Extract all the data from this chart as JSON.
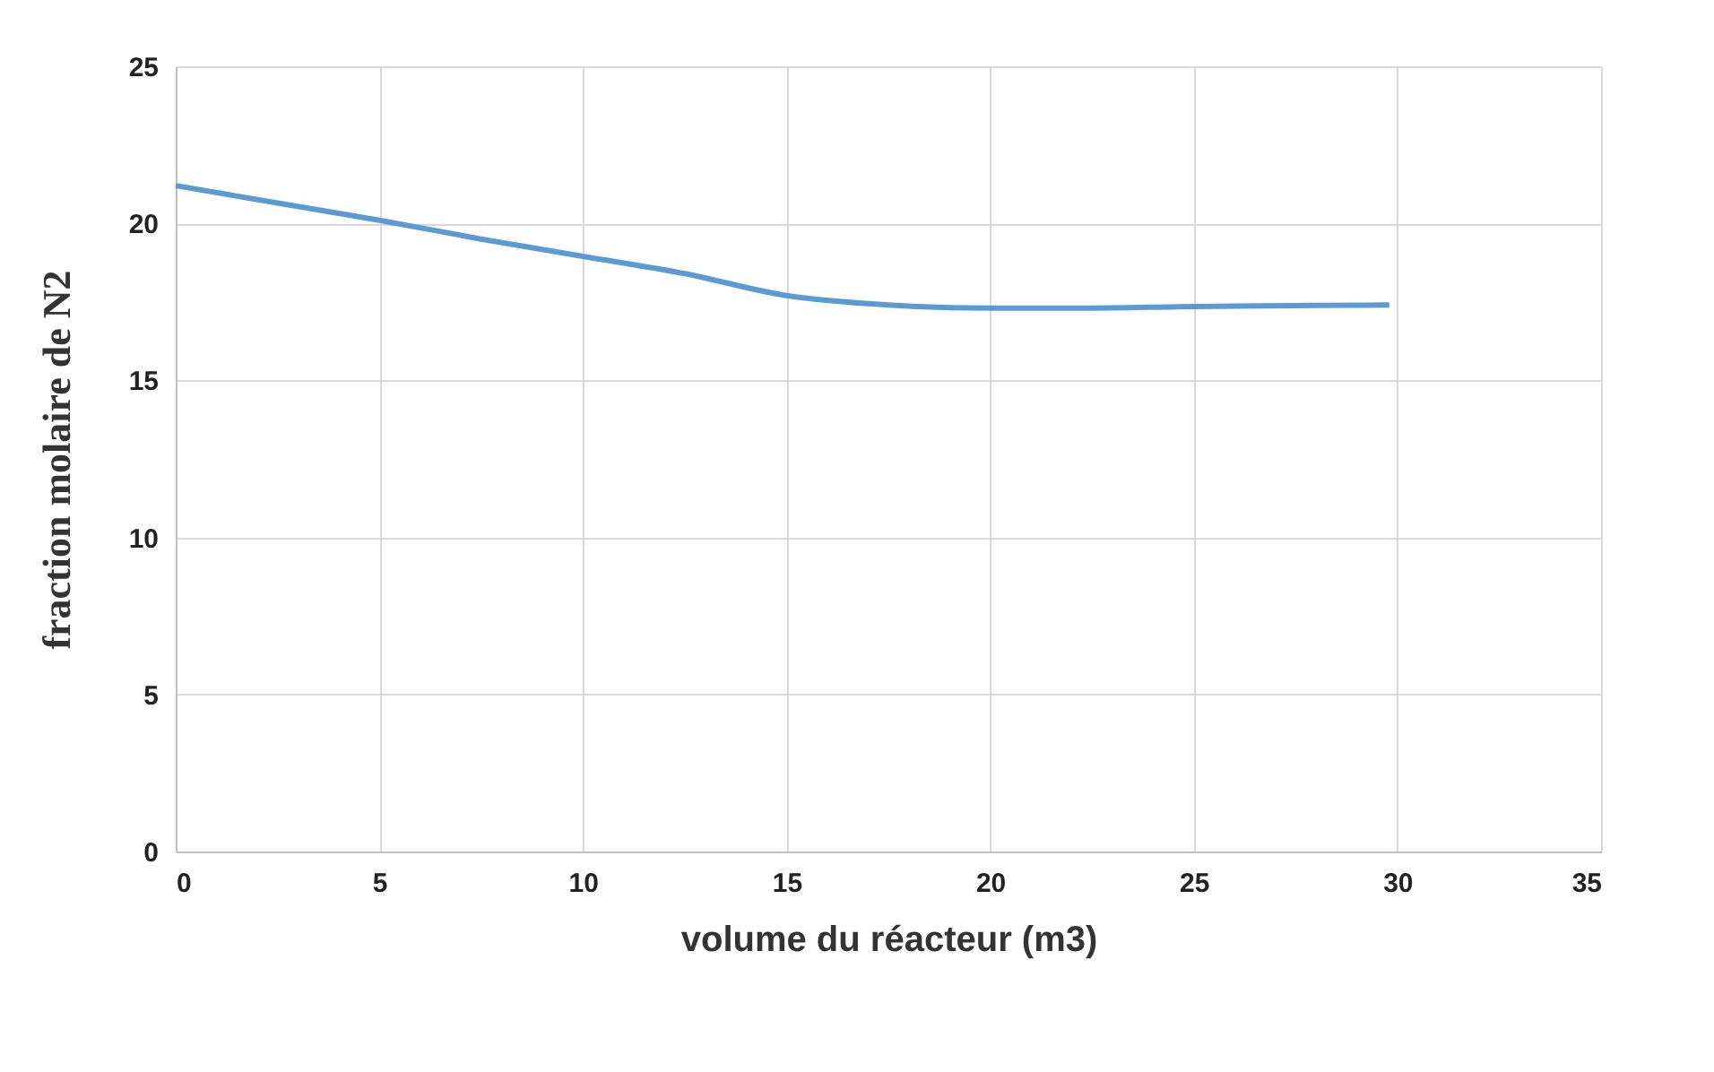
{
  "chart_data": {
    "type": "line",
    "xlabel": "volume du réacteur (m3)",
    "ylabel": "fraction molaire de N2",
    "x": [
      0,
      2.5,
      5,
      7.5,
      10,
      12.5,
      15,
      17.5,
      20,
      22,
      25,
      27.5,
      29.8
    ],
    "series": [
      {
        "color": "#5b9bd5",
        "values": [
          21.2,
          20.65,
          20.1,
          19.5,
          18.95,
          18.4,
          17.7,
          17.4,
          17.3,
          17.3,
          17.35,
          17.38,
          17.4
        ]
      }
    ],
    "xlim": [
      0,
      35
    ],
    "xticks": [
      0,
      5,
      10,
      15,
      20,
      25,
      30,
      35
    ],
    "ylim": [
      0,
      25
    ],
    "yticks": [
      0,
      5,
      10,
      15,
      20,
      25
    ],
    "grid": true,
    "marker": "none",
    "line_style": "solid"
  }
}
